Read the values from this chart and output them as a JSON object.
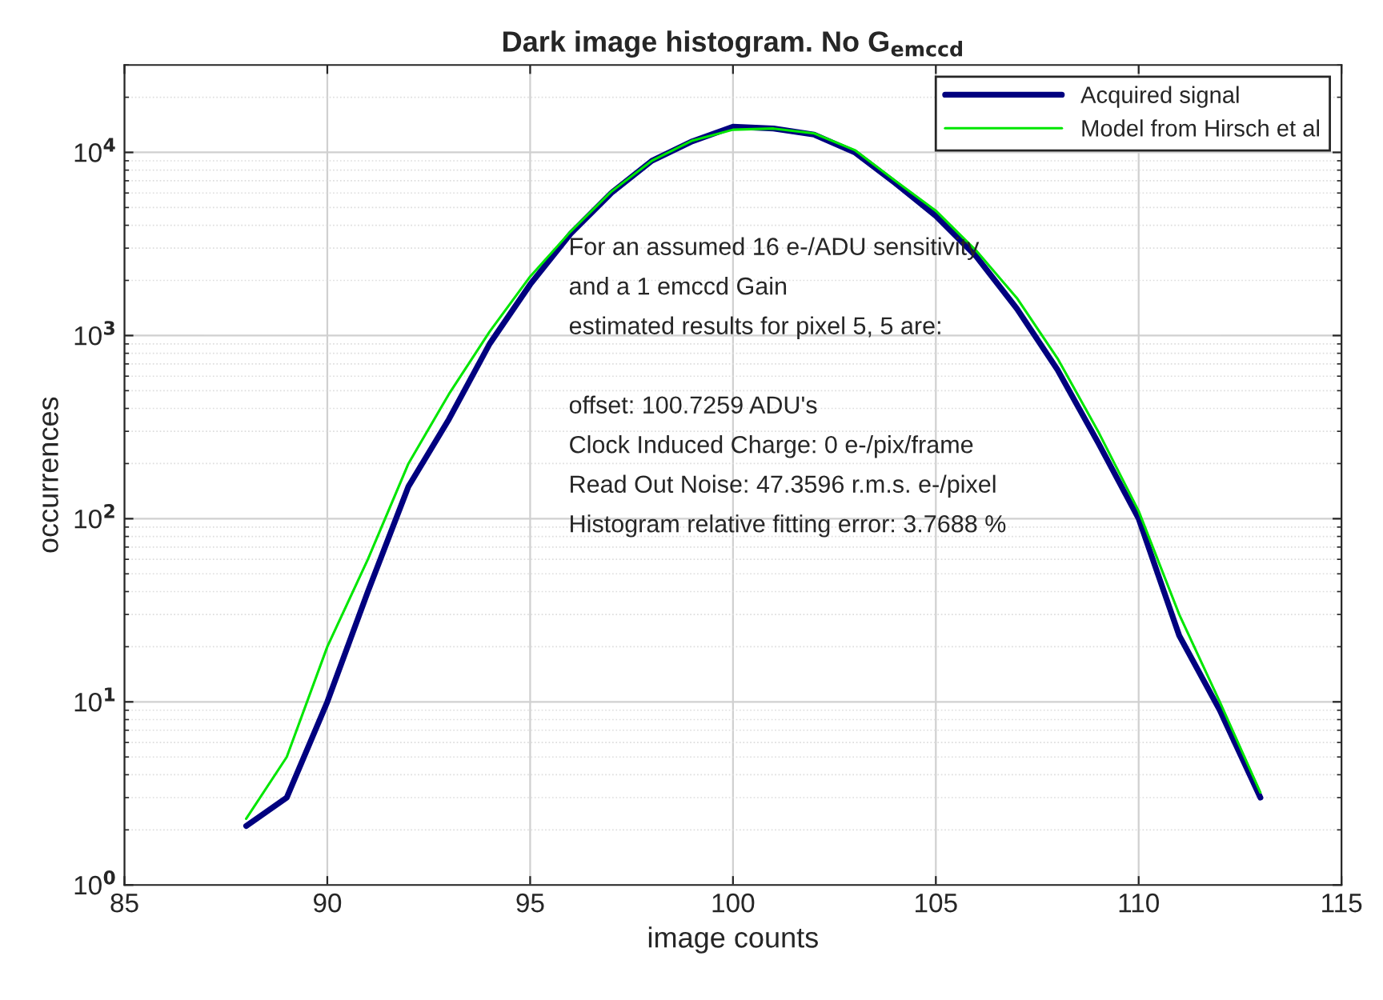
{
  "chart_data": {
    "type": "line",
    "title": "Dark image histogram. No G$_{emccd}$",
    "xlabel": "image counts",
    "ylabel": "occurrences",
    "x": [
      88,
      89,
      90,
      91,
      92,
      93,
      94,
      95,
      96,
      97,
      98,
      99,
      100,
      101,
      102,
      103,
      104,
      105,
      106,
      107,
      108,
      109,
      110,
      111,
      112,
      113
    ],
    "series": [
      {
        "name": "Acquired signal",
        "color": "#00007f",
        "values": [
          2.1,
          3,
          10,
          40,
          150,
          350,
          900,
          1900,
          3600,
          6000,
          9000,
          11500,
          13800,
          13500,
          12500,
          10000,
          6800,
          4500,
          2700,
          1400,
          650,
          260,
          100,
          23,
          9,
          3
        ]
      },
      {
        "name": "Model from Hirsch et al",
        "color": "#00e600",
        "values": [
          2.3,
          5,
          20,
          60,
          200,
          480,
          1050,
          2100,
          3700,
          6100,
          9000,
          11600,
          13300,
          13500,
          12700,
          10300,
          7000,
          4800,
          2900,
          1600,
          750,
          300,
          110,
          30,
          10,
          3.2
        ]
      }
    ],
    "log": "y",
    "xlim": [
      85,
      115
    ],
    "xticks": [
      85,
      90,
      95,
      100,
      105,
      110,
      115
    ],
    "ylim": [
      1,
      30000
    ],
    "yticks": [
      {
        "value": 1,
        "label": "10$^{0}$"
      },
      {
        "value": 10,
        "label": "10$^{1}$"
      },
      {
        "value": 100,
        "label": "10$^{2}$"
      },
      {
        "value": 1000,
        "label": "10$^{3}$"
      },
      {
        "value": 10000,
        "label": "10$^{4}$"
      }
    ],
    "grid": true,
    "legend": "top right",
    "line_style": "solid",
    "marker": "none",
    "annotations": [
      "For an assumed 16 e-/ADU sensitivity\nand a 1 emccd Gain\nestimated results for pixel 5, 5 are:\n\noffset: 100.7259 ADU's\nClock Induced Charge: 0 e-/pix/frame\nRead Out Noise: 47.3596 r.m.s. e-/pixel\nHistogram relative fitting error: 3.7688 %"
    ]
  }
}
